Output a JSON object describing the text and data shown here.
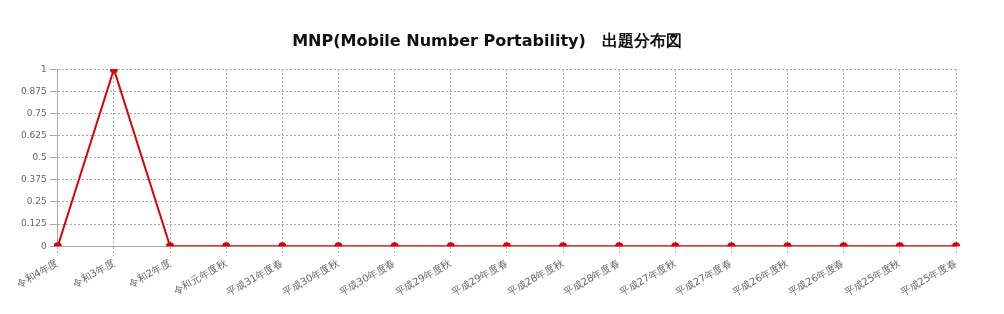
{
  "chart_data": {
    "type": "line",
    "title": "MNP(Mobile Number Portability)　出題分布図",
    "categories": [
      "令和4年度",
      "令和3年度",
      "令和2年度",
      "令和元年度秋",
      "平成31年度春",
      "平成30年度秋",
      "平成30年度春",
      "平成29年度秋",
      "平成29年度春",
      "平成28年度秋",
      "平成28年度春",
      "平成27年度秋",
      "平成27年度春",
      "平成26年度秋",
      "平成26年度春",
      "平成25年度秋",
      "平成25年度春"
    ],
    "series": [
      {
        "color": "#dd0000",
        "values": [
          0,
          1,
          0,
          0,
          0,
          0,
          0,
          0,
          0,
          0,
          0,
          0,
          0,
          0,
          0,
          0,
          0
        ]
      }
    ],
    "ylim": [
      0,
      1
    ],
    "yticks": [
      0,
      0.125,
      0.25,
      0.375,
      0.5,
      0.625,
      0.75,
      0.875,
      1
    ],
    "grid": true,
    "legend": false,
    "marker": "circle",
    "line_style": "solid"
  }
}
